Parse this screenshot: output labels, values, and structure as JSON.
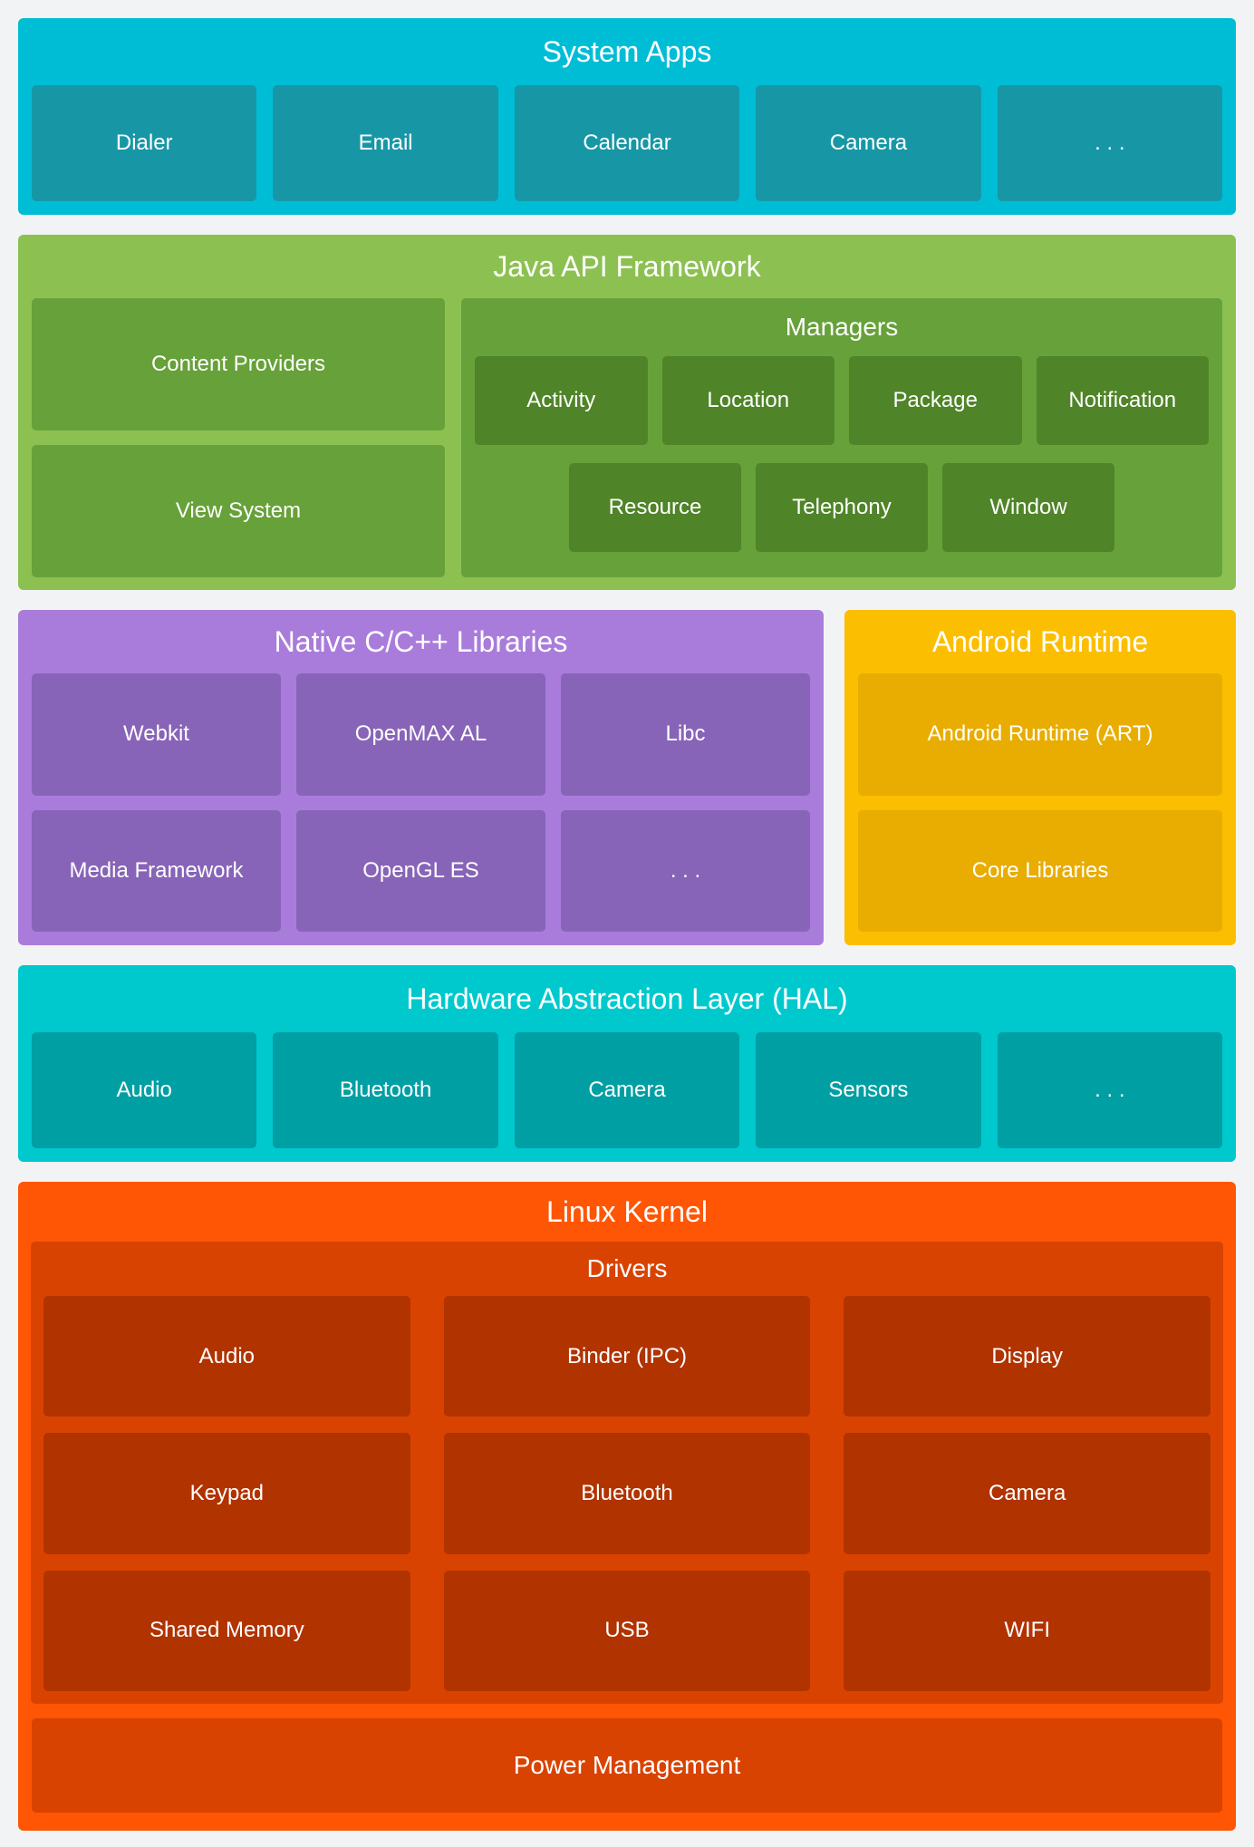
{
  "colors": {
    "bg": "#F2F3F4",
    "text": "#FFFFFF",
    "sys_outer": "#00BDD6",
    "sys_inner": "#1797A6",
    "java_outer": "#8CC152",
    "java_mid": "#67A139",
    "java_dark": "#4F8428",
    "purple_outer": "#A97CDB",
    "purple_inner": "#8764B8",
    "gold_outer": "#FCBE00",
    "gold_inner": "#E8AD00",
    "hal_outer": "#00C9CD",
    "hal_inner": "#009FA3",
    "kernel_outer": "#FF5605",
    "kernel_mid": "#D94301",
    "kernel_dark": "#B13300"
  },
  "sections": {
    "system_apps": {
      "title": "System Apps",
      "items": [
        "Dialer",
        "Email",
        "Calendar",
        "Camera",
        ". . ."
      ]
    },
    "java_api": {
      "title": "Java API Framework",
      "left_items": [
        "Content Providers",
        "View System"
      ],
      "managers": {
        "title": "Managers",
        "row1": [
          "Activity",
          "Location",
          "Package",
          "Notification"
        ],
        "row2": [
          "Resource",
          "Telephony",
          "Window"
        ]
      }
    },
    "native_libs": {
      "title": "Native C/C++ Libraries",
      "row1": [
        "Webkit",
        "OpenMAX AL",
        "Libc"
      ],
      "row2": [
        "Media Framework",
        "OpenGL ES",
        ". . ."
      ]
    },
    "android_runtime": {
      "title": "Android Runtime",
      "items": [
        "Android Runtime (ART)",
        "Core Libraries"
      ]
    },
    "hal": {
      "title": "Hardware Abstraction Layer (HAL)",
      "items": [
        "Audio",
        "Bluetooth",
        "Camera",
        "Sensors",
        ". . ."
      ]
    },
    "linux_kernel": {
      "title": "Linux Kernel",
      "drivers": {
        "title": "Drivers",
        "row1": [
          "Audio",
          "Binder (IPC)",
          "Display"
        ],
        "row2": [
          "Keypad",
          "Bluetooth",
          "Camera"
        ],
        "row3": [
          "Shared Memory",
          "USB",
          "WIFI"
        ]
      },
      "power": "Power Management"
    }
  }
}
